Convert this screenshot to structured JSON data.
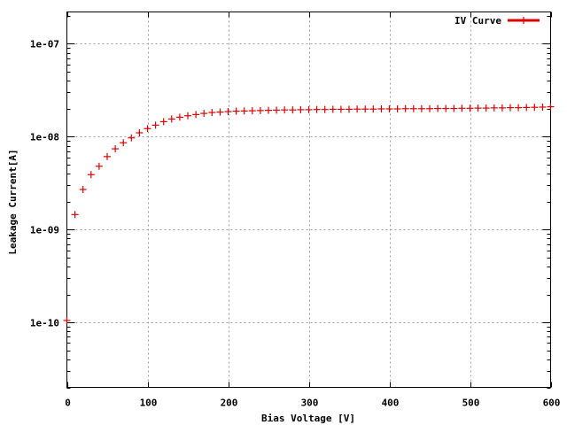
{
  "chart_data": {
    "type": "scatter",
    "title": "",
    "xlabel": "Bias Voltage [V]",
    "ylabel": "Leakage Current[A]",
    "xlim": [
      0,
      600
    ],
    "ylim": [
      2e-11,
      2.2e-07
    ],
    "y_scale": "log",
    "grid": true,
    "legend_position": "top-right",
    "x_ticks": [
      0,
      100,
      200,
      300,
      400,
      500,
      600
    ],
    "x_tick_labels": [
      "0",
      "100",
      "200",
      "300",
      "400",
      "500",
      "600"
    ],
    "y_ticks": [
      1e-10,
      1e-09,
      1e-08,
      1e-07
    ],
    "y_tick_labels": [
      "1e-10",
      "1e-09",
      "1e-08",
      "1e-07"
    ],
    "series": [
      {
        "name": "IV Curve",
        "color": "#e00000",
        "marker": "plus",
        "x": [
          0,
          10,
          20,
          30,
          40,
          50,
          60,
          70,
          80,
          90,
          100,
          110,
          120,
          130,
          140,
          150,
          160,
          170,
          180,
          190,
          200,
          210,
          220,
          230,
          240,
          250,
          260,
          270,
          280,
          290,
          300,
          310,
          320,
          330,
          340,
          350,
          360,
          370,
          380,
          390,
          400,
          410,
          420,
          430,
          440,
          450,
          460,
          470,
          480,
          490,
          500,
          510,
          520,
          530,
          540,
          550,
          560,
          570,
          580,
          590,
          600
        ],
        "y": [
          1.05e-10,
          1.45e-09,
          2.7e-09,
          3.9e-09,
          4.8e-09,
          6.1e-09,
          7.4e-09,
          8.6e-09,
          9.7e-09,
          1.1e-08,
          1.22e-08,
          1.33e-08,
          1.45e-08,
          1.55e-08,
          1.62e-08,
          1.68e-08,
          1.73e-08,
          1.78e-08,
          1.82e-08,
          1.84e-08,
          1.86e-08,
          1.88e-08,
          1.89e-08,
          1.9e-08,
          1.91e-08,
          1.92e-08,
          1.93e-08,
          1.94e-08,
          1.94e-08,
          1.95e-08,
          1.95e-08,
          1.96e-08,
          1.96e-08,
          1.97e-08,
          1.97e-08,
          1.97e-08,
          1.98e-08,
          1.98e-08,
          1.98e-08,
          1.99e-08,
          1.99e-08,
          1.99e-08,
          2e-08,
          2e-08,
          2e-08,
          2e-08,
          2.01e-08,
          2.01e-08,
          2.01e-08,
          2.02e-08,
          2.02e-08,
          2.03e-08,
          2.03e-08,
          2.04e-08,
          2.04e-08,
          2.05e-08,
          2.05e-08,
          2.06e-08,
          2.07e-08,
          2.08e-08,
          2.1e-08
        ]
      }
    ]
  }
}
